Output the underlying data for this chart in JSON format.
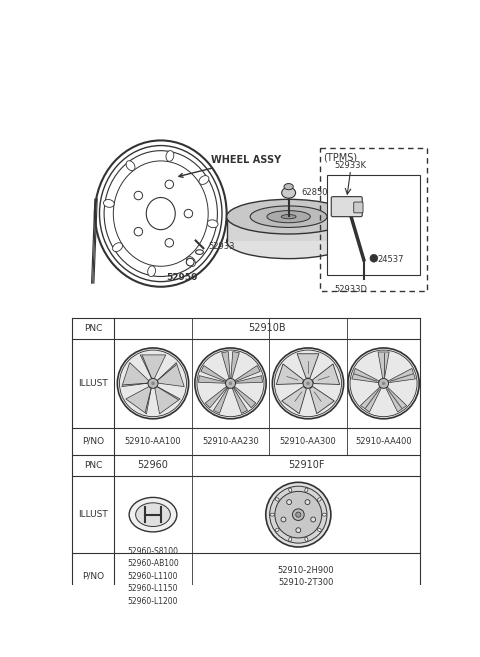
{
  "bg_color": "#ffffff",
  "line_color": "#333333",
  "fig_width": 4.8,
  "fig_height": 6.57,
  "dpi": 100,
  "table": {
    "part_numbers_row1": [
      "52910-AA100",
      "52910-AA230",
      "52910-AA300",
      "52910-AA400"
    ],
    "part_numbers_row2_col1": [
      "52960-S8100",
      "52960-AB100",
      "52960-L1100",
      "52960-L1150",
      "52960-L1200"
    ],
    "part_numbers_row2_col2": [
      "52910-2H900",
      "52910-2T300"
    ]
  }
}
